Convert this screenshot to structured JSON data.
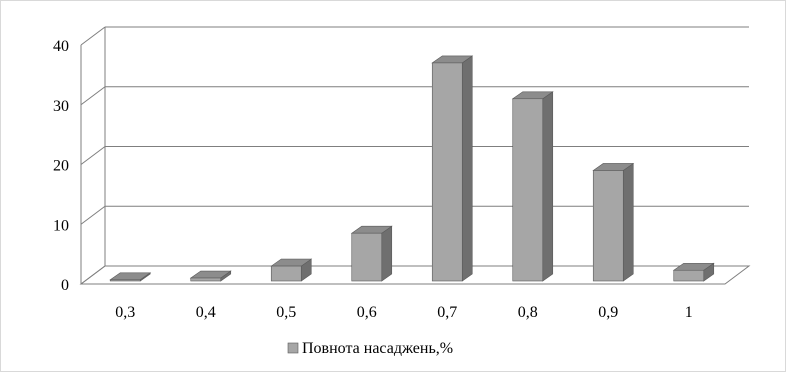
{
  "chart_data": {
    "type": "bar",
    "title": "",
    "xlabel": "",
    "ylabel": "",
    "categories": [
      "0,3",
      "0,4",
      "0,5",
      "0,6",
      "0,7",
      "0,8",
      "0,9",
      "1"
    ],
    "series": [
      {
        "name": "Повнота насаджень,%",
        "values": [
          0.2,
          0.5,
          2.5,
          8.0,
          36.5,
          30.5,
          18.5,
          1.8
        ]
      }
    ],
    "ylim": [
      0,
      40
    ],
    "y_ticks": [
      "0",
      "10",
      "20",
      "30",
      "40"
    ],
    "grid": true,
    "legend_position": "bottom",
    "style": "3d",
    "colors": {
      "bar_front": "#a6a6a6",
      "bar_side": "#6f6f6f",
      "bar_top": "#8c8c8c",
      "bar_outline": "#5a5a5a",
      "grid": "#7f7f7f",
      "text": "#000000"
    }
  }
}
